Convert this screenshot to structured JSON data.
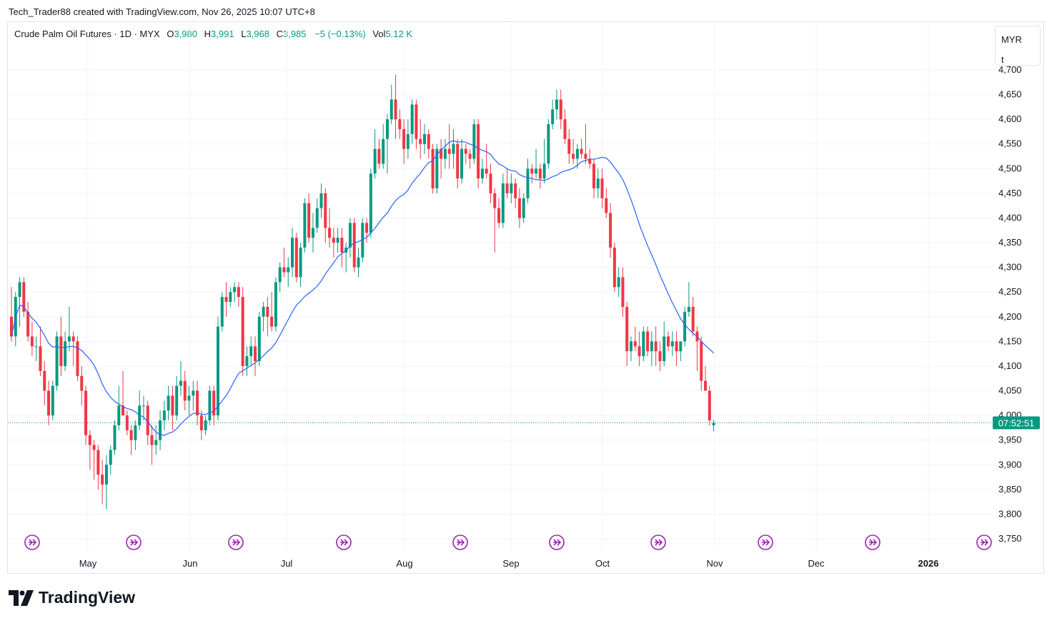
{
  "attribution": "Tech_Trader88 created with TradingView.com, Nov 26, 2025 10:07 UTC+8",
  "legend": {
    "symbol": "Crude Palm Oil Futures · 1D · MYX",
    "open_label": "O",
    "open": "3,980",
    "high_label": "H",
    "high": "3,991",
    "low_label": "L",
    "low": "3,968",
    "close_label": "C",
    "close": "3,985",
    "change": "−5 (−0.13%)",
    "vol_label": "Vol",
    "vol": "5.12 K"
  },
  "currency_box": {
    "currency": "MYR",
    "unit": "t"
  },
  "countdown": "07:52:51",
  "brand": "TradingView",
  "colors": {
    "up": "#089981",
    "down": "#f23645",
    "ma": "#2962ff",
    "event": "#9c27b0",
    "grid": "#f0f3fa"
  },
  "chart_data": {
    "type": "candlestick",
    "y_ticks": [
      "4,700",
      "4,650",
      "4,600",
      "4,550",
      "4,500",
      "4,450",
      "4,400",
      "4,350",
      "4,300",
      "4,250",
      "4,200",
      "4,150",
      "4,100",
      "4,050",
      "4,000",
      "3,950",
      "3,900",
      "3,850",
      "3,800",
      "3,750"
    ],
    "x_ticks": [
      "May",
      "Jun",
      "Jul",
      "Aug",
      "Sep",
      "Oct",
      "Nov",
      "Dec",
      "2026"
    ],
    "ylim": [
      3730,
      4725
    ],
    "last_price": 3985,
    "events": 10,
    "candles": [
      [
        4200,
        4260,
        4150,
        4160
      ],
      [
        4160,
        4250,
        4140,
        4240
      ],
      [
        4240,
        4280,
        4180,
        4270
      ],
      [
        4270,
        4280,
        4200,
        4210
      ],
      [
        4210,
        4230,
        4150,
        4160
      ],
      [
        4160,
        4190,
        4120,
        4140
      ],
      [
        4140,
        4160,
        4110,
        4140
      ],
      [
        4140,
        4180,
        4080,
        4090
      ],
      [
        4090,
        4110,
        4020,
        4050
      ],
      [
        4050,
        4070,
        3980,
        4000
      ],
      [
        4000,
        4070,
        3990,
        4060
      ],
      [
        4060,
        4170,
        4050,
        4160
      ],
      [
        4160,
        4200,
        4080,
        4100
      ],
      [
        4100,
        4170,
        4090,
        4150
      ],
      [
        4150,
        4220,
        4130,
        4160
      ],
      [
        4160,
        4170,
        4100,
        4150
      ],
      [
        4150,
        4160,
        4070,
        4080
      ],
      [
        4080,
        4100,
        4020,
        4050
      ],
      [
        4050,
        4060,
        3940,
        3960
      ],
      [
        3960,
        3970,
        3890,
        3940
      ],
      [
        3940,
        3950,
        3870,
        3930
      ],
      [
        3930,
        3940,
        3850,
        3880
      ],
      [
        3880,
        3910,
        3820,
        3860
      ],
      [
        3860,
        3920,
        3810,
        3900
      ],
      [
        3900,
        3940,
        3880,
        3930
      ],
      [
        3930,
        3990,
        3920,
        3980
      ],
      [
        3980,
        4060,
        3970,
        4020
      ],
      [
        4020,
        4090,
        4000,
        4000
      ],
      [
        4000,
        4010,
        3960,
        3970
      ],
      [
        3970,
        3980,
        3920,
        3950
      ],
      [
        3950,
        3990,
        3930,
        3980
      ],
      [
        3980,
        4050,
        3970,
        4020
      ],
      [
        4020,
        4040,
        3990,
        4020
      ],
      [
        4020,
        4030,
        3940,
        3960
      ],
      [
        3960,
        3980,
        3900,
        3940
      ],
      [
        3940,
        3980,
        3920,
        3950
      ],
      [
        3950,
        4010,
        3930,
        3990
      ],
      [
        3990,
        4030,
        3970,
        4010
      ],
      [
        4010,
        4060,
        3990,
        4040
      ],
      [
        4040,
        4060,
        3970,
        4000
      ],
      [
        4000,
        4080,
        3990,
        4060
      ],
      [
        4060,
        4110,
        4040,
        4070
      ],
      [
        4070,
        4090,
        4010,
        4030
      ],
      [
        4030,
        4060,
        4000,
        4040
      ],
      [
        4040,
        4070,
        4010,
        4050
      ],
      [
        4050,
        4070,
        3980,
        4000
      ],
      [
        4000,
        4010,
        3950,
        3970
      ],
      [
        3970,
        4000,
        3960,
        3990
      ],
      [
        3990,
        4060,
        3980,
        4050
      ],
      [
        4050,
        4060,
        3980,
        4000
      ],
      [
        4000,
        4200,
        3990,
        4180
      ],
      [
        4180,
        4250,
        4170,
        4240
      ],
      [
        4240,
        4270,
        4200,
        4230
      ],
      [
        4230,
        4260,
        4220,
        4250
      ],
      [
        4250,
        4270,
        4230,
        4260
      ],
      [
        4260,
        4270,
        4220,
        4240
      ],
      [
        4240,
        4260,
        4080,
        4100
      ],
      [
        4100,
        4140,
        4080,
        4120
      ],
      [
        4120,
        4160,
        4100,
        4140
      ],
      [
        4140,
        4160,
        4080,
        4110
      ],
      [
        4110,
        4210,
        4100,
        4200
      ],
      [
        4200,
        4230,
        4170,
        4220
      ],
      [
        4220,
        4240,
        4160,
        4200
      ],
      [
        4200,
        4250,
        4170,
        4180
      ],
      [
        4180,
        4280,
        4170,
        4270
      ],
      [
        4270,
        4310,
        4250,
        4300
      ],
      [
        4300,
        4340,
        4280,
        4290
      ],
      [
        4290,
        4320,
        4260,
        4300
      ],
      [
        4300,
        4380,
        4280,
        4360
      ],
      [
        4360,
        4370,
        4270,
        4280
      ],
      [
        4280,
        4350,
        4260,
        4340
      ],
      [
        4340,
        4440,
        4330,
        4430
      ],
      [
        4430,
        4450,
        4350,
        4360
      ],
      [
        4360,
        4410,
        4330,
        4380
      ],
      [
        4380,
        4440,
        4370,
        4420
      ],
      [
        4420,
        4470,
        4400,
        4450
      ],
      [
        4450,
        4460,
        4350,
        4380
      ],
      [
        4380,
        4420,
        4340,
        4360
      ],
      [
        4360,
        4380,
        4320,
        4350
      ],
      [
        4350,
        4380,
        4330,
        4360
      ],
      [
        4360,
        4380,
        4300,
        4330
      ],
      [
        4330,
        4350,
        4290,
        4340
      ],
      [
        4340,
        4400,
        4320,
        4390
      ],
      [
        4390,
        4400,
        4290,
        4300
      ],
      [
        4300,
        4340,
        4280,
        4320
      ],
      [
        4320,
        4400,
        4310,
        4390
      ],
      [
        4390,
        4400,
        4350,
        4370
      ],
      [
        4370,
        4500,
        4360,
        4490
      ],
      [
        4490,
        4580,
        4480,
        4540
      ],
      [
        4540,
        4560,
        4500,
        4510
      ],
      [
        4510,
        4590,
        4500,
        4560
      ],
      [
        4560,
        4610,
        4490,
        4600
      ],
      [
        4600,
        4670,
        4590,
        4640
      ],
      [
        4640,
        4690,
        4560,
        4600
      ],
      [
        4600,
        4620,
        4560,
        4580
      ],
      [
        4580,
        4600,
        4510,
        4540
      ],
      [
        4540,
        4600,
        4520,
        4570
      ],
      [
        4570,
        4640,
        4550,
        4630
      ],
      [
        4630,
        4640,
        4540,
        4560
      ],
      [
        4560,
        4600,
        4520,
        4550
      ],
      [
        4550,
        4590,
        4530,
        4570
      ],
      [
        4570,
        4580,
        4520,
        4540
      ],
      [
        4540,
        4550,
        4450,
        4460
      ],
      [
        4460,
        4550,
        4450,
        4540
      ],
      [
        4540,
        4560,
        4480,
        4520
      ],
      [
        4520,
        4560,
        4500,
        4540
      ],
      [
        4540,
        4590,
        4500,
        4530
      ],
      [
        4530,
        4580,
        4500,
        4550
      ],
      [
        4550,
        4560,
        4460,
        4480
      ],
      [
        4480,
        4560,
        4470,
        4540
      ],
      [
        4540,
        4550,
        4510,
        4530
      ],
      [
        4530,
        4540,
        4500,
        4520
      ],
      [
        4520,
        4600,
        4510,
        4590
      ],
      [
        4590,
        4600,
        4460,
        4480
      ],
      [
        4480,
        4520,
        4470,
        4500
      ],
      [
        4500,
        4550,
        4480,
        4490
      ],
      [
        4490,
        4510,
        4430,
        4450
      ],
      [
        4450,
        4460,
        4330,
        4420
      ],
      [
        4420,
        4440,
        4380,
        4390
      ],
      [
        4390,
        4490,
        4380,
        4470
      ],
      [
        4470,
        4500,
        4440,
        4450
      ],
      [
        4450,
        4490,
        4430,
        4470
      ],
      [
        4470,
        4480,
        4420,
        4440
      ],
      [
        4440,
        4460,
        4380,
        4400
      ],
      [
        4400,
        4450,
        4390,
        4440
      ],
      [
        4440,
        4520,
        4430,
        4500
      ],
      [
        4500,
        4510,
        4470,
        4490
      ],
      [
        4490,
        4540,
        4480,
        4500
      ],
      [
        4500,
        4510,
        4460,
        4480
      ],
      [
        4480,
        4560,
        4470,
        4510
      ],
      [
        4510,
        4600,
        4500,
        4590
      ],
      [
        4590,
        4640,
        4580,
        4620
      ],
      [
        4620,
        4660,
        4600,
        4640
      ],
      [
        4640,
        4660,
        4580,
        4600
      ],
      [
        4600,
        4620,
        4550,
        4560
      ],
      [
        4560,
        4580,
        4510,
        4530
      ],
      [
        4530,
        4560,
        4510,
        4520
      ],
      [
        4520,
        4550,
        4500,
        4540
      ],
      [
        4540,
        4560,
        4520,
        4530
      ],
      [
        4530,
        4590,
        4510,
        4520
      ],
      [
        4520,
        4540,
        4500,
        4510
      ],
      [
        4510,
        4520,
        4440,
        4460
      ],
      [
        4460,
        4500,
        4440,
        4480
      ],
      [
        4480,
        4500,
        4420,
        4440
      ],
      [
        4440,
        4460,
        4400,
        4410
      ],
      [
        4410,
        4430,
        4320,
        4340
      ],
      [
        4340,
        4350,
        4250,
        4260
      ],
      [
        4260,
        4300,
        4240,
        4280
      ],
      [
        4280,
        4300,
        4200,
        4220
      ],
      [
        4220,
        4230,
        4100,
        4130
      ],
      [
        4130,
        4160,
        4110,
        4150
      ],
      [
        4150,
        4180,
        4130,
        4140
      ],
      [
        4140,
        4170,
        4100,
        4120
      ],
      [
        4120,
        4180,
        4110,
        4170
      ],
      [
        4170,
        4180,
        4120,
        4130
      ],
      [
        4130,
        4170,
        4100,
        4150
      ],
      [
        4150,
        4180,
        4100,
        4130
      ],
      [
        4130,
        4150,
        4090,
        4110
      ],
      [
        4110,
        4190,
        4100,
        4160
      ],
      [
        4160,
        4170,
        4130,
        4140
      ],
      [
        4140,
        4170,
        4120,
        4150
      ],
      [
        4150,
        4170,
        4100,
        4130
      ],
      [
        4130,
        4150,
        4110,
        4150
      ],
      [
        4150,
        4220,
        4140,
        4210
      ],
      [
        4210,
        4270,
        4200,
        4220
      ],
      [
        4220,
        4240,
        4160,
        4170
      ],
      [
        4170,
        4180,
        4090,
        4150
      ],
      [
        4150,
        4160,
        4050,
        4070
      ],
      [
        4070,
        4100,
        4050,
        4050
      ],
      [
        4050,
        4060,
        3980,
        3990
      ],
      [
        3980,
        3991,
        3968,
        3985
      ]
    ]
  }
}
